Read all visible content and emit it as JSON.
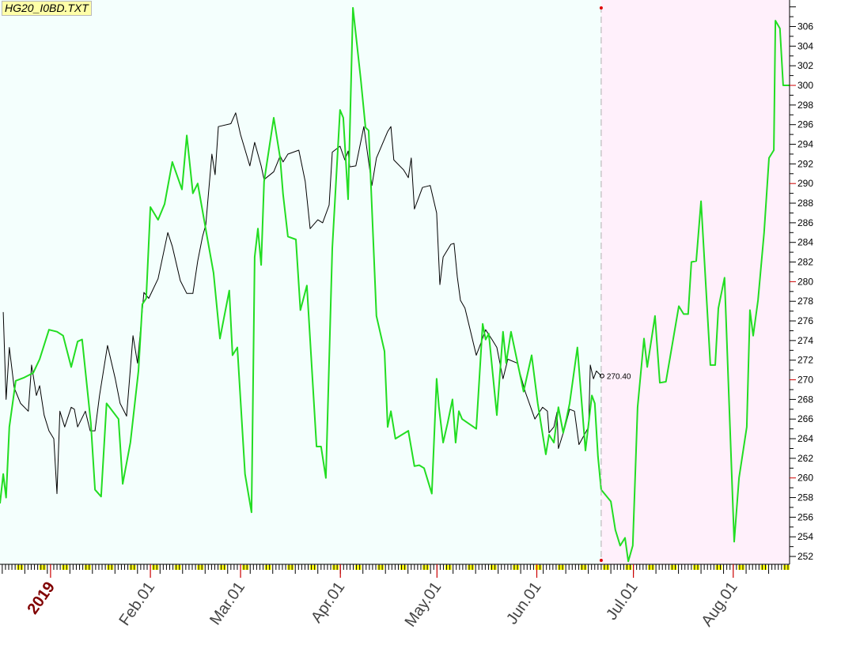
{
  "title": "HG20_I0BD.TXT",
  "colors": {
    "plot_bg": "#f4fffd",
    "forecast_bg": "#fff0fb",
    "green": "#22dd22",
    "black": "#000000",
    "month_tick": "#cc0000",
    "weekend": "#ffff00"
  },
  "chart_data": {
    "type": "line",
    "title": "HG20_I0BD.TXT",
    "x_unit": "days since 2019-01-01",
    "xlim": [
      -15.7,
      229.5
    ],
    "ylim": [
      251.2,
      308.7
    ],
    "y_ticks": [
      252,
      254,
      256,
      258,
      260,
      262,
      264,
      266,
      268,
      270,
      272,
      274,
      276,
      278,
      280,
      282,
      284,
      286,
      288,
      290,
      292,
      294,
      296,
      298,
      300,
      302,
      304,
      306
    ],
    "x_tick_labels": [
      {
        "day": 0,
        "label": "2019",
        "year": true
      },
      {
        "day": 31,
        "label": "Feb.01"
      },
      {
        "day": 59,
        "label": "Mar.01"
      },
      {
        "day": 90,
        "label": "Apr.01"
      },
      {
        "day": 120,
        "label": "May.01"
      },
      {
        "day": 151,
        "label": "Jun.01"
      },
      {
        "day": 181,
        "label": "Jul.01"
      },
      {
        "day": 212,
        "label": "Aug.01"
      }
    ],
    "forecast_start_day": 171,
    "last_value_label": "270.40",
    "last_value": 270.4,
    "series": [
      {
        "name": "price",
        "color": "#000000",
        "points": [
          [
            -14.7,
            276.9
          ],
          [
            -13.8,
            268.0
          ],
          [
            -12.8,
            273.3
          ],
          [
            -11.3,
            269.2
          ],
          [
            -9.3,
            267.6
          ],
          [
            -6.9,
            266.8
          ],
          [
            -5.9,
            271.5
          ],
          [
            -4.4,
            268.4
          ],
          [
            -3.4,
            269.4
          ],
          [
            -2.0,
            266.4
          ],
          [
            -0.5,
            264.8
          ],
          [
            1.0,
            264.0
          ],
          [
            2.0,
            258.4
          ],
          [
            2.9,
            266.8
          ],
          [
            4.4,
            265.2
          ],
          [
            6.4,
            267.2
          ],
          [
            7.4,
            267.0
          ],
          [
            8.4,
            265.2
          ],
          [
            10.8,
            266.8
          ],
          [
            12.3,
            264.8
          ],
          [
            13.8,
            264.8
          ],
          [
            15.2,
            268.4
          ],
          [
            17.7,
            273.5
          ],
          [
            20.1,
            270.1
          ],
          [
            21.6,
            267.6
          ],
          [
            23.6,
            266.3
          ],
          [
            25.6,
            274.5
          ],
          [
            27.0,
            271.7
          ],
          [
            29.0,
            278.9
          ],
          [
            30.5,
            278.3
          ],
          [
            33.4,
            280.3
          ],
          [
            36.4,
            285.0
          ],
          [
            37.8,
            283.6
          ],
          [
            40.3,
            280.1
          ],
          [
            42.3,
            278.8
          ],
          [
            44.2,
            278.8
          ],
          [
            45.7,
            282.1
          ],
          [
            47.2,
            284.6
          ],
          [
            48.2,
            285.8
          ],
          [
            50.1,
            293.0
          ],
          [
            51.1,
            290.9
          ],
          [
            52.1,
            295.8
          ],
          [
            56.0,
            296.1
          ],
          [
            57.5,
            297.2
          ],
          [
            59.0,
            295.0
          ],
          [
            61.9,
            291.8
          ],
          [
            63.4,
            294.2
          ],
          [
            65.4,
            291.8
          ],
          [
            66.3,
            290.4
          ],
          [
            69.3,
            291.2
          ],
          [
            71.3,
            292.8
          ],
          [
            72.2,
            292.2
          ],
          [
            73.7,
            293.0
          ],
          [
            77.1,
            293.4
          ],
          [
            79.1,
            290.2
          ],
          [
            80.6,
            285.4
          ],
          [
            83.0,
            286.3
          ],
          [
            84.5,
            286.0
          ],
          [
            86.5,
            287.8
          ],
          [
            87.5,
            293.2
          ],
          [
            89.9,
            293.8
          ],
          [
            91.4,
            292.4
          ],
          [
            92.4,
            293.3
          ],
          [
            92.9,
            291.7
          ],
          [
            94.8,
            291.8
          ],
          [
            97.3,
            295.8
          ],
          [
            99.8,
            289.8
          ],
          [
            101.2,
            292.6
          ],
          [
            104.7,
            295.3
          ],
          [
            105.7,
            295.8
          ],
          [
            106.6,
            292.4
          ],
          [
            109.6,
            291.4
          ],
          [
            111.1,
            290.6
          ],
          [
            112.0,
            292.6
          ],
          [
            113.0,
            287.4
          ],
          [
            115.5,
            289.6
          ],
          [
            117.9,
            289.8
          ],
          [
            119.9,
            287.0
          ],
          [
            120.9,
            279.7
          ],
          [
            121.9,
            282.5
          ],
          [
            124.3,
            283.8
          ],
          [
            125.3,
            283.9
          ],
          [
            126.3,
            280.5
          ],
          [
            127.3,
            278.1
          ],
          [
            128.7,
            277.3
          ],
          [
            132.2,
            272.5
          ],
          [
            133.7,
            273.8
          ],
          [
            135.1,
            275.1
          ],
          [
            137.1,
            274.1
          ],
          [
            138.6,
            273.3
          ],
          [
            140.5,
            270.1
          ],
          [
            142.0,
            272.1
          ],
          [
            144.9,
            271.7
          ],
          [
            147.4,
            268.8
          ],
          [
            150.4,
            266.0
          ],
          [
            152.8,
            267.2
          ],
          [
            154.3,
            266.8
          ],
          [
            154.8,
            264.6
          ],
          [
            156.3,
            265.2
          ],
          [
            157.3,
            266.7
          ],
          [
            157.7,
            263.0
          ],
          [
            159.7,
            265.1
          ],
          [
            161.2,
            267.0
          ],
          [
            162.7,
            266.8
          ],
          [
            164.1,
            263.4
          ],
          [
            167.1,
            265.2
          ],
          [
            167.6,
            271.5
          ],
          [
            168.6,
            270.1
          ],
          [
            169.5,
            270.9
          ],
          [
            171.0,
            270.4
          ]
        ]
      },
      {
        "name": "forecast",
        "color": "#22dd22",
        "points": [
          [
            -15.7,
            257.4
          ],
          [
            -14.7,
            260.4
          ],
          [
            -13.8,
            258.0
          ],
          [
            -12.8,
            265.2
          ],
          [
            -10.8,
            269.9
          ],
          [
            -8.4,
            270.2
          ],
          [
            -5.4,
            270.7
          ],
          [
            -3.4,
            272.1
          ],
          [
            -0.5,
            275.1
          ],
          [
            2.0,
            274.9
          ],
          [
            3.9,
            274.5
          ],
          [
            6.4,
            271.3
          ],
          [
            8.4,
            273.9
          ],
          [
            9.8,
            274.1
          ],
          [
            12.5,
            265.6
          ],
          [
            13.8,
            258.8
          ],
          [
            15.7,
            258.1
          ],
          [
            17.4,
            267.6
          ],
          [
            21.1,
            266.0
          ],
          [
            22.4,
            259.4
          ],
          [
            24.8,
            263.6
          ],
          [
            27.3,
            270.9
          ],
          [
            28.5,
            277.7
          ],
          [
            29.7,
            278.3
          ],
          [
            31.0,
            287.6
          ],
          [
            33.4,
            286.3
          ],
          [
            35.4,
            287.9
          ],
          [
            37.8,
            292.2
          ],
          [
            40.8,
            289.4
          ],
          [
            42.3,
            294.9
          ],
          [
            44.2,
            289.0
          ],
          [
            45.7,
            290.0
          ],
          [
            48.6,
            284.6
          ],
          [
            50.6,
            280.9
          ],
          [
            52.6,
            274.2
          ],
          [
            55.5,
            279.1
          ],
          [
            56.5,
            272.5
          ],
          [
            58.0,
            273.3
          ],
          [
            60.4,
            260.4
          ],
          [
            62.4,
            256.5
          ],
          [
            63.4,
            282.5
          ],
          [
            64.4,
            285.4
          ],
          [
            65.4,
            281.7
          ],
          [
            66.3,
            290.2
          ],
          [
            69.3,
            296.7
          ],
          [
            71.3,
            292.6
          ],
          [
            72.2,
            288.9
          ],
          [
            73.7,
            284.6
          ],
          [
            76.2,
            284.3
          ],
          [
            77.6,
            277.1
          ],
          [
            79.6,
            279.6
          ],
          [
            82.6,
            263.2
          ],
          [
            84.0,
            263.2
          ],
          [
            85.5,
            260.0
          ],
          [
            87.5,
            283.4
          ],
          [
            89.9,
            297.5
          ],
          [
            90.9,
            296.7
          ],
          [
            92.4,
            288.4
          ],
          [
            93.9,
            307.9
          ],
          [
            96.3,
            300.7
          ],
          [
            97.8,
            295.7
          ],
          [
            98.8,
            295.4
          ],
          [
            101.2,
            276.5
          ],
          [
            103.7,
            272.9
          ],
          [
            104.7,
            265.2
          ],
          [
            105.7,
            266.8
          ],
          [
            107.1,
            264.0
          ],
          [
            111.1,
            264.8
          ],
          [
            113.0,
            261.2
          ],
          [
            114.5,
            261.3
          ],
          [
            116.0,
            261.0
          ],
          [
            118.4,
            258.4
          ],
          [
            119.9,
            270.1
          ],
          [
            120.6,
            267.2
          ],
          [
            121.9,
            263.6
          ],
          [
            123.3,
            265.6
          ],
          [
            124.8,
            268.0
          ],
          [
            125.8,
            263.6
          ],
          [
            126.8,
            266.8
          ],
          [
            127.8,
            266.0
          ],
          [
            132.2,
            265.0
          ],
          [
            134.2,
            275.7
          ],
          [
            135.1,
            274.1
          ],
          [
            136.1,
            274.7
          ],
          [
            138.6,
            266.4
          ],
          [
            140.5,
            274.9
          ],
          [
            141.5,
            271.7
          ],
          [
            143.0,
            274.9
          ],
          [
            146.9,
            268.8
          ],
          [
            149.4,
            272.5
          ],
          [
            151.3,
            267.6
          ],
          [
            153.8,
            262.4
          ],
          [
            154.8,
            264.4
          ],
          [
            156.3,
            263.6
          ],
          [
            157.7,
            267.2
          ],
          [
            159.2,
            264.6
          ],
          [
            160.2,
            266.0
          ],
          [
            161.2,
            267.6
          ],
          [
            163.6,
            273.3
          ],
          [
            166.1,
            262.8
          ],
          [
            168.1,
            268.4
          ],
          [
            169.0,
            267.6
          ],
          [
            170.0,
            262.2
          ],
          [
            171.0,
            258.8
          ],
          [
            174.0,
            257.6
          ],
          [
            175.4,
            254.7
          ],
          [
            176.9,
            253.1
          ],
          [
            178.4,
            253.9
          ],
          [
            179.4,
            251.5
          ],
          [
            180.8,
            253.1
          ],
          [
            182.3,
            267.2
          ],
          [
            184.3,
            274.2
          ],
          [
            185.3,
            271.3
          ],
          [
            187.7,
            276.5
          ],
          [
            189.2,
            269.7
          ],
          [
            191.1,
            269.8
          ],
          [
            195.1,
            277.5
          ],
          [
            196.6,
            276.7
          ],
          [
            198.0,
            276.7
          ],
          [
            199.0,
            282.0
          ],
          [
            200.5,
            282.1
          ],
          [
            202.0,
            288.2
          ],
          [
            204.9,
            271.5
          ],
          [
            206.4,
            271.5
          ],
          [
            207.4,
            277.3
          ],
          [
            209.3,
            280.4
          ],
          [
            212.3,
            253.5
          ],
          [
            213.8,
            260.0
          ],
          [
            216.2,
            265.2
          ],
          [
            217.2,
            277.1
          ],
          [
            218.2,
            274.5
          ],
          [
            219.7,
            278.1
          ],
          [
            221.6,
            285.0
          ],
          [
            223.1,
            292.6
          ],
          [
            224.6,
            293.4
          ],
          [
            225.1,
            306.6
          ],
          [
            226.5,
            305.8
          ],
          [
            227.5,
            300.0
          ],
          [
            229.5,
            300.0
          ]
        ]
      }
    ]
  }
}
